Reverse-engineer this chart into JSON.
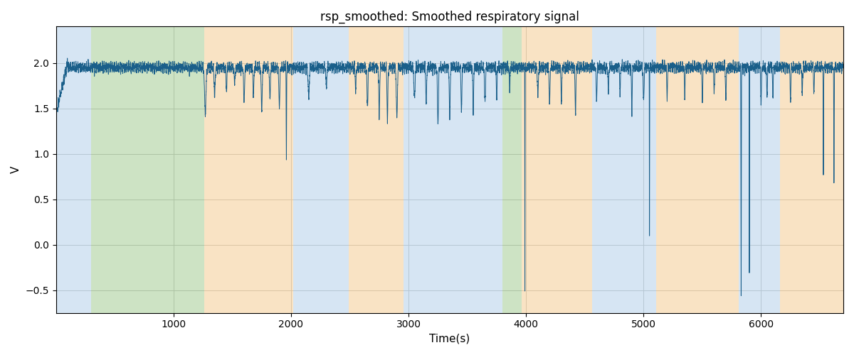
{
  "title": "rsp_smoothed: Smoothed respiratory signal",
  "xlabel": "Time(s)",
  "ylabel": "V",
  "xlim": [
    0,
    6700
  ],
  "ylim": [
    -0.75,
    2.4
  ],
  "line_color": "#1a5f8a",
  "line_width": 0.7,
  "yticks": [
    -0.5,
    0.0,
    0.5,
    1.0,
    1.5,
    2.0
  ],
  "xticks": [
    1000,
    2000,
    3000,
    4000,
    5000,
    6000
  ],
  "bg_regions": [
    {
      "xmin": 0,
      "xmax": 300,
      "color": "#aecde8",
      "alpha": 0.5
    },
    {
      "xmin": 300,
      "xmax": 1260,
      "color": "#9dc88a",
      "alpha": 0.5
    },
    {
      "xmin": 1260,
      "xmax": 2020,
      "color": "#f5c98a",
      "alpha": 0.5
    },
    {
      "xmin": 2020,
      "xmax": 2490,
      "color": "#aecde8",
      "alpha": 0.5
    },
    {
      "xmin": 2490,
      "xmax": 2960,
      "color": "#f5c98a",
      "alpha": 0.5
    },
    {
      "xmin": 2960,
      "xmax": 3800,
      "color": "#aecde8",
      "alpha": 0.5
    },
    {
      "xmin": 3800,
      "xmax": 3960,
      "color": "#9dc88a",
      "alpha": 0.5
    },
    {
      "xmin": 3960,
      "xmax": 4560,
      "color": "#f5c98a",
      "alpha": 0.5
    },
    {
      "xmin": 4560,
      "xmax": 5110,
      "color": "#aecde8",
      "alpha": 0.5
    },
    {
      "xmin": 5110,
      "xmax": 5810,
      "color": "#f5c98a",
      "alpha": 0.5
    },
    {
      "xmin": 5810,
      "xmax": 6160,
      "color": "#aecde8",
      "alpha": 0.5
    },
    {
      "xmin": 6160,
      "xmax": 6700,
      "color": "#f5c98a",
      "alpha": 0.5
    }
  ]
}
